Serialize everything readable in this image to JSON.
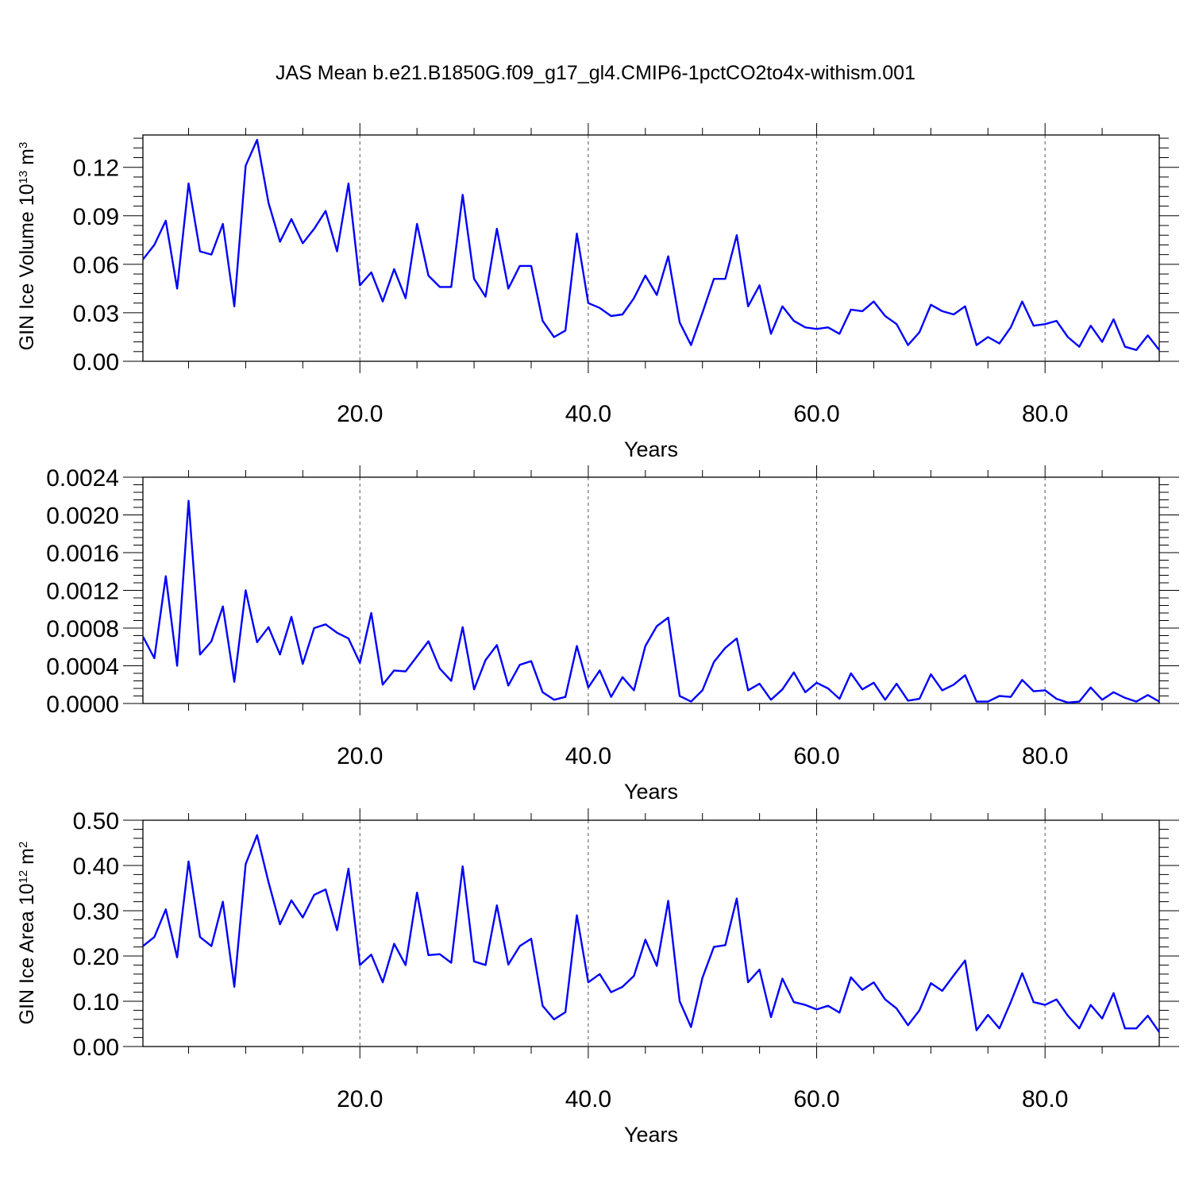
{
  "title": "JAS Mean b.e21.B1850G.f09_g17_gl4.CMIP6-1pctCO2to4x-withism.001",
  "colors": {
    "line": "#0000ff",
    "axis": "#000000",
    "grid": "#555555"
  },
  "chart_data": [
    {
      "type": "line",
      "ylabel": "GIN Ice Volume 10",
      "ylabel_sup": "13",
      "ylabel_unit": "m",
      "ylabel_unit_sup": "3",
      "xlabel": "Years",
      "xlim": [
        1,
        90
      ],
      "ylim": [
        0,
        0.14
      ],
      "xticks": [
        20,
        40,
        60,
        80
      ],
      "xtick_labels": [
        "20.0",
        "40.0",
        "60.0",
        "80.0"
      ],
      "yticks": [
        0,
        0.03,
        0.06,
        0.09,
        0.12
      ],
      "ytick_labels": [
        "0.00",
        "0.03",
        "0.06",
        "0.09",
        "0.12"
      ],
      "grid": "vertical-dashed",
      "values": [
        0.063,
        0.072,
        0.087,
        0.045,
        0.11,
        0.068,
        0.066,
        0.085,
        0.034,
        0.121,
        0.137,
        0.098,
        0.074,
        0.088,
        0.073,
        0.082,
        0.093,
        0.068,
        0.11,
        0.047,
        0.055,
        0.037,
        0.057,
        0.039,
        0.085,
        0.053,
        0.046,
        0.046,
        0.103,
        0.051,
        0.04,
        0.082,
        0.045,
        0.059,
        0.059,
        0.025,
        0.015,
        0.019,
        0.079,
        0.036,
        0.033,
        0.028,
        0.029,
        0.039,
        0.053,
        0.041,
        0.065,
        0.024,
        0.01,
        0.03,
        0.051,
        0.051,
        0.078,
        0.034,
        0.047,
        0.017,
        0.034,
        0.025,
        0.021,
        0.02,
        0.021,
        0.017,
        0.032,
        0.031,
        0.037,
        0.028,
        0.023,
        0.01,
        0.018,
        0.035,
        0.031,
        0.029,
        0.034,
        0.01,
        0.015,
        0.011,
        0.021,
        0.037,
        0.022,
        0.023,
        0.025,
        0.015,
        0.009,
        0.022,
        0.012,
        0.026,
        0.009,
        0.007,
        0.016,
        0.007
      ]
    },
    {
      "type": "line",
      "ylabel": "",
      "ylabel_sup": "",
      "ylabel_unit": "",
      "ylabel_unit_sup": "",
      "xlabel": "Years",
      "xlim": [
        1,
        90
      ],
      "ylim": [
        0,
        0.0024
      ],
      "xticks": [
        20,
        40,
        60,
        80
      ],
      "xtick_labels": [
        "20.0",
        "40.0",
        "60.0",
        "80.0"
      ],
      "yticks": [
        0,
        0.0004,
        0.0008,
        0.0012,
        0.0016,
        0.002,
        0.0024
      ],
      "ytick_labels": [
        "0.0000",
        "0.0004",
        "0.0008",
        "0.0012",
        "0.0016",
        "0.0020",
        "0.0024"
      ],
      "grid": "vertical-dashed",
      "values": [
        0.00071,
        0.00048,
        0.00135,
        0.0004,
        0.00215,
        0.00052,
        0.00066,
        0.00103,
        0.00023,
        0.0012,
        0.00065,
        0.00081,
        0.00052,
        0.00092,
        0.00042,
        0.0008,
        0.00084,
        0.00075,
        0.00069,
        0.00043,
        0.00096,
        0.0002,
        0.00035,
        0.00034,
        0.0005,
        0.00066,
        0.00037,
        0.00024,
        0.00081,
        0.00015,
        0.00046,
        0.00062,
        0.00019,
        0.00041,
        0.00045,
        0.00012,
        4e-05,
        7e-05,
        0.00061,
        0.00017,
        0.00035,
        7e-05,
        0.00028,
        0.00014,
        0.00061,
        0.00082,
        0.00091,
        8e-05,
        2e-05,
        0.00014,
        0.00044,
        0.00059,
        0.00069,
        0.00014,
        0.00021,
        4e-05,
        0.00015,
        0.00033,
        0.00012,
        0.00022,
        0.00016,
        5e-05,
        0.00032,
        0.00015,
        0.00022,
        4e-05,
        0.00021,
        3e-05,
        5e-05,
        0.00031,
        0.00014,
        0.0002,
        0.0003,
        2e-05,
        2e-05,
        8e-05,
        7e-05,
        0.00025,
        0.00013,
        0.00014,
        5e-05,
        1e-05,
        2e-05,
        0.00017,
        4e-05,
        0.00012,
        6e-05,
        2e-05,
        9e-05,
        2e-05
      ]
    },
    {
      "type": "line",
      "ylabel": "GIN Ice Area 10",
      "ylabel_sup": "12",
      "ylabel_unit": "m",
      "ylabel_unit_sup": "2",
      "xlabel": "Years",
      "xlim": [
        1,
        90
      ],
      "ylim": [
        0,
        0.5
      ],
      "xticks": [
        20,
        40,
        60,
        80
      ],
      "xtick_labels": [
        "20.0",
        "40.0",
        "60.0",
        "80.0"
      ],
      "yticks": [
        0,
        0.1,
        0.2,
        0.3,
        0.4,
        0.5
      ],
      "ytick_labels": [
        "0.00",
        "0.10",
        "0.20",
        "0.30",
        "0.40",
        "0.50"
      ],
      "grid": "vertical-dashed",
      "values": [
        0.222,
        0.242,
        0.303,
        0.197,
        0.409,
        0.242,
        0.222,
        0.32,
        0.132,
        0.403,
        0.467,
        0.363,
        0.27,
        0.323,
        0.285,
        0.335,
        0.347,
        0.257,
        0.393,
        0.18,
        0.203,
        0.142,
        0.227,
        0.18,
        0.34,
        0.202,
        0.204,
        0.185,
        0.398,
        0.188,
        0.18,
        0.312,
        0.181,
        0.222,
        0.238,
        0.09,
        0.06,
        0.076,
        0.29,
        0.142,
        0.16,
        0.12,
        0.132,
        0.156,
        0.236,
        0.178,
        0.322,
        0.1,
        0.043,
        0.152,
        0.22,
        0.224,
        0.327,
        0.142,
        0.17,
        0.065,
        0.15,
        0.098,
        0.092,
        0.082,
        0.09,
        0.075,
        0.153,
        0.125,
        0.142,
        0.104,
        0.084,
        0.047,
        0.08,
        0.14,
        0.123,
        0.157,
        0.19,
        0.036,
        0.07,
        0.04,
        0.098,
        0.162,
        0.098,
        0.092,
        0.104,
        0.068,
        0.04,
        0.092,
        0.062,
        0.118,
        0.04,
        0.04,
        0.068,
        0.032
      ]
    }
  ]
}
